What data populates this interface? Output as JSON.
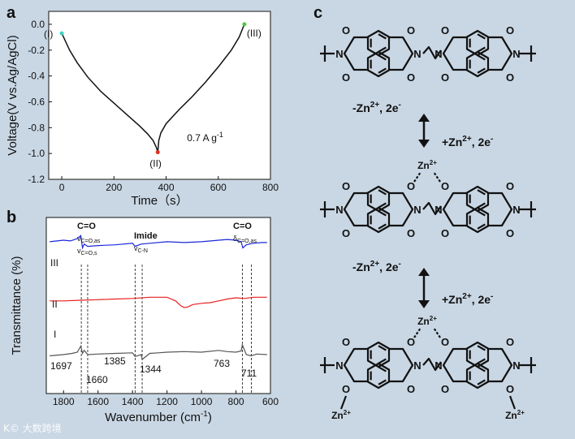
{
  "chart_data": [
    {
      "panel": "a",
      "type": "line",
      "xlabel": "Time（s）",
      "ylabel": "Voltage(V vs.Ag/AgCl)",
      "xlim": [
        -50,
        800
      ],
      "ylim": [
        -1.2,
        0.1
      ],
      "xticks": [
        "0",
        "200",
        "400",
        "600",
        "800"
      ],
      "yticks": [
        "0.0",
        "-0.2",
        "-0.4",
        "-0.6",
        "-0.8",
        "-1.0",
        "-1.2"
      ],
      "series": [
        {
          "x": [
            0,
            30,
            60,
            100,
            150,
            200,
            250,
            300,
            330,
            350,
            362,
            368
          ],
          "y": [
            -0.07,
            -0.2,
            -0.3,
            -0.41,
            -0.52,
            -0.61,
            -0.7,
            -0.79,
            -0.85,
            -0.9,
            -0.95,
            -0.99
          ],
          "color": "#111111"
        },
        {
          "x": [
            368,
            372,
            380,
            400,
            450,
            500,
            550,
            600,
            650,
            680,
            700
          ],
          "y": [
            -0.99,
            -0.9,
            -0.84,
            -0.77,
            -0.66,
            -0.56,
            -0.45,
            -0.33,
            -0.2,
            -0.1,
            0.0
          ],
          "color": "#111111"
        }
      ],
      "markers": [
        {
          "x": 0,
          "y": -0.07,
          "color": "#3fd0c0"
        },
        {
          "x": 368,
          "y": -0.99,
          "color": "#e03020"
        },
        {
          "x": 700,
          "y": 0.0,
          "color": "#50c840"
        }
      ],
      "annotations": [
        "(I)",
        "(II)",
        "(III)",
        "0.7 A g"
      ],
      "annotation_sup": "-1"
    },
    {
      "panel": "b",
      "type": "line",
      "xlabel": "Wavenumber (cm",
      "xlabel_sup": "-1",
      "xlabel_end": ")",
      "ylabel": "Transmittance (%)",
      "xlim": [
        1900,
        600
      ],
      "xticks": [
        "1800",
        "1600",
        "1400",
        "1200",
        "1000",
        "800",
        "600"
      ],
      "series": [
        {
          "name": "III",
          "color": "#1a28d8",
          "x": [
            1880,
            1800,
            1760,
            1720,
            1700,
            1690,
            1680,
            1660,
            1600,
            1500,
            1400,
            1385,
            1350,
            1300,
            1200,
            1100,
            1000,
            900,
            850,
            800,
            770,
            760,
            740,
            700,
            650,
            620
          ],
          "y": [
            78,
            80,
            79,
            82,
            86,
            70,
            75,
            72,
            73,
            74,
            76,
            72,
            75,
            76,
            78,
            77,
            78,
            80,
            81,
            80,
            78,
            70,
            74,
            76,
            77,
            77
          ]
        },
        {
          "name": "II",
          "color": "#e82020",
          "x": [
            1880,
            1800,
            1700,
            1600,
            1500,
            1400,
            1300,
            1200,
            1150,
            1120,
            1100,
            1080,
            1050,
            1000,
            950,
            900,
            850,
            800,
            750,
            700,
            650,
            620
          ],
          "y": [
            55,
            55,
            56,
            57,
            58,
            59,
            61,
            61,
            55,
            47,
            44,
            45,
            49,
            51,
            52,
            55,
            58,
            60,
            59,
            61,
            61,
            61
          ]
        },
        {
          "name": "I",
          "color": "#555555",
          "x": [
            1880,
            1800,
            1750,
            1720,
            1700,
            1690,
            1680,
            1660,
            1600,
            1500,
            1400,
            1385,
            1350,
            1344,
            1300,
            1250,
            1200,
            1100,
            1000,
            900,
            850,
            800,
            770,
            763,
            740,
            711,
            680,
            620
          ],
          "y": [
            18,
            20,
            22,
            24,
            34,
            22,
            27,
            20,
            21,
            22,
            23,
            17,
            20,
            12,
            22,
            23,
            24,
            25,
            24,
            27,
            25,
            24,
            26,
            36,
            20,
            18,
            21,
            20
          ]
        }
      ],
      "curve_labels": [
        "III",
        "II",
        "I"
      ],
      "group_labels": [
        {
          "title": "C=O",
          "lines": [
            [
              "v",
              "C=O,as"
            ],
            [
              "v",
              "C=O,s"
            ]
          ]
        },
        {
          "title": "Imide",
          "lines": [
            [
              "v",
              "C-N"
            ]
          ]
        },
        {
          "title": "C=O",
          "lines": [
            [
              "δ",
              "C=O,as"
            ]
          ]
        }
      ],
      "peak_labels": [
        "1697",
        "1660",
        "1385",
        "1344",
        "763",
        "711"
      ],
      "peak_positions": [
        1697,
        1660,
        1385,
        1344,
        763,
        711
      ]
    }
  ],
  "panel_c": {
    "letter": "c",
    "step1_left": "-Zn",
    "step1_left_sup": "2+",
    "step1_left_end": ", 2e",
    "step1_left_sup2": "-",
    "step1_right": "+Zn",
    "step1_right_sup": "2+",
    "step1_right_end": ", 2e",
    "step1_right_sup2": "-",
    "step2_left": "-Zn",
    "step2_left_sup": "2+",
    "step2_left_end": ", 2e",
    "step2_left_sup2": "-",
    "step2_right": "+Zn",
    "step2_right_sup": "2+",
    "step2_right_end": ", 2e",
    "step2_right_sup2": "-",
    "atom_o": "O",
    "atom_n": "N",
    "zn_label": "Zn",
    "zn_sup": "2+"
  },
  "panel_letters": {
    "a": "a",
    "b": "b"
  },
  "watermark": "K© 大数跨境"
}
